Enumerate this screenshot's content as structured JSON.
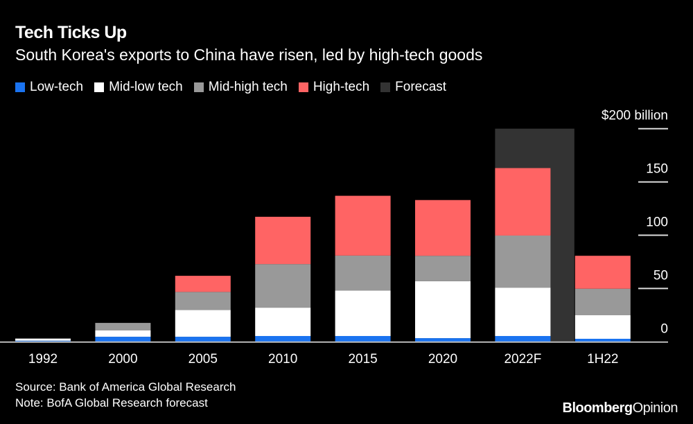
{
  "chart_data": {
    "type": "bar",
    "stacked": true,
    "title": "Tech Ticks Up",
    "subtitle": "South Korea's exports to China have risen, led by high-tech goods",
    "categories": [
      "1992",
      "2000",
      "2005",
      "2010",
      "2015",
      "2020",
      "2022F",
      "1H22"
    ],
    "series": [
      {
        "name": "Low-tech",
        "color": "#1a73f0",
        "values": [
          1.0,
          4.7,
          4.7,
          5.4,
          5.4,
          3.4,
          5.4,
          2.8
        ]
      },
      {
        "name": "Mid-low tech",
        "color": "#ffffff",
        "values": [
          2.0,
          6.1,
          25.2,
          26.6,
          42.6,
          53.5,
          45.4,
          22.1
        ]
      },
      {
        "name": "Mid-high tech",
        "color": "#999999",
        "values": [
          0,
          6.9,
          16.9,
          40.9,
          32.9,
          23.8,
          48.9,
          24.9
        ]
      },
      {
        "name": "High-tech",
        "color": "#ff6464",
        "values": [
          0,
          0,
          15.1,
          44.4,
          56.1,
          52.3,
          63.3,
          30.9
        ]
      }
    ],
    "forecast": {
      "name": "Forecast",
      "color": "#333333",
      "category": "2022F",
      "value": 200
    },
    "y_ticks": [
      {
        "value": 0,
        "label": "0"
      },
      {
        "value": 50,
        "label": "50"
      },
      {
        "value": 100,
        "label": "100"
      },
      {
        "value": 150,
        "label": "150"
      },
      {
        "value": 200,
        "label": "$200 billion"
      }
    ],
    "ylim": [
      0,
      200
    ],
    "y_axis_side": "right",
    "legend_position": "top-left",
    "grid": false
  },
  "footer": {
    "source": "Source: Bank of America Global Research",
    "note": "Note: BofA Global Research forecast",
    "logo_main": "Bloomberg",
    "logo_sub": "Opinion"
  }
}
